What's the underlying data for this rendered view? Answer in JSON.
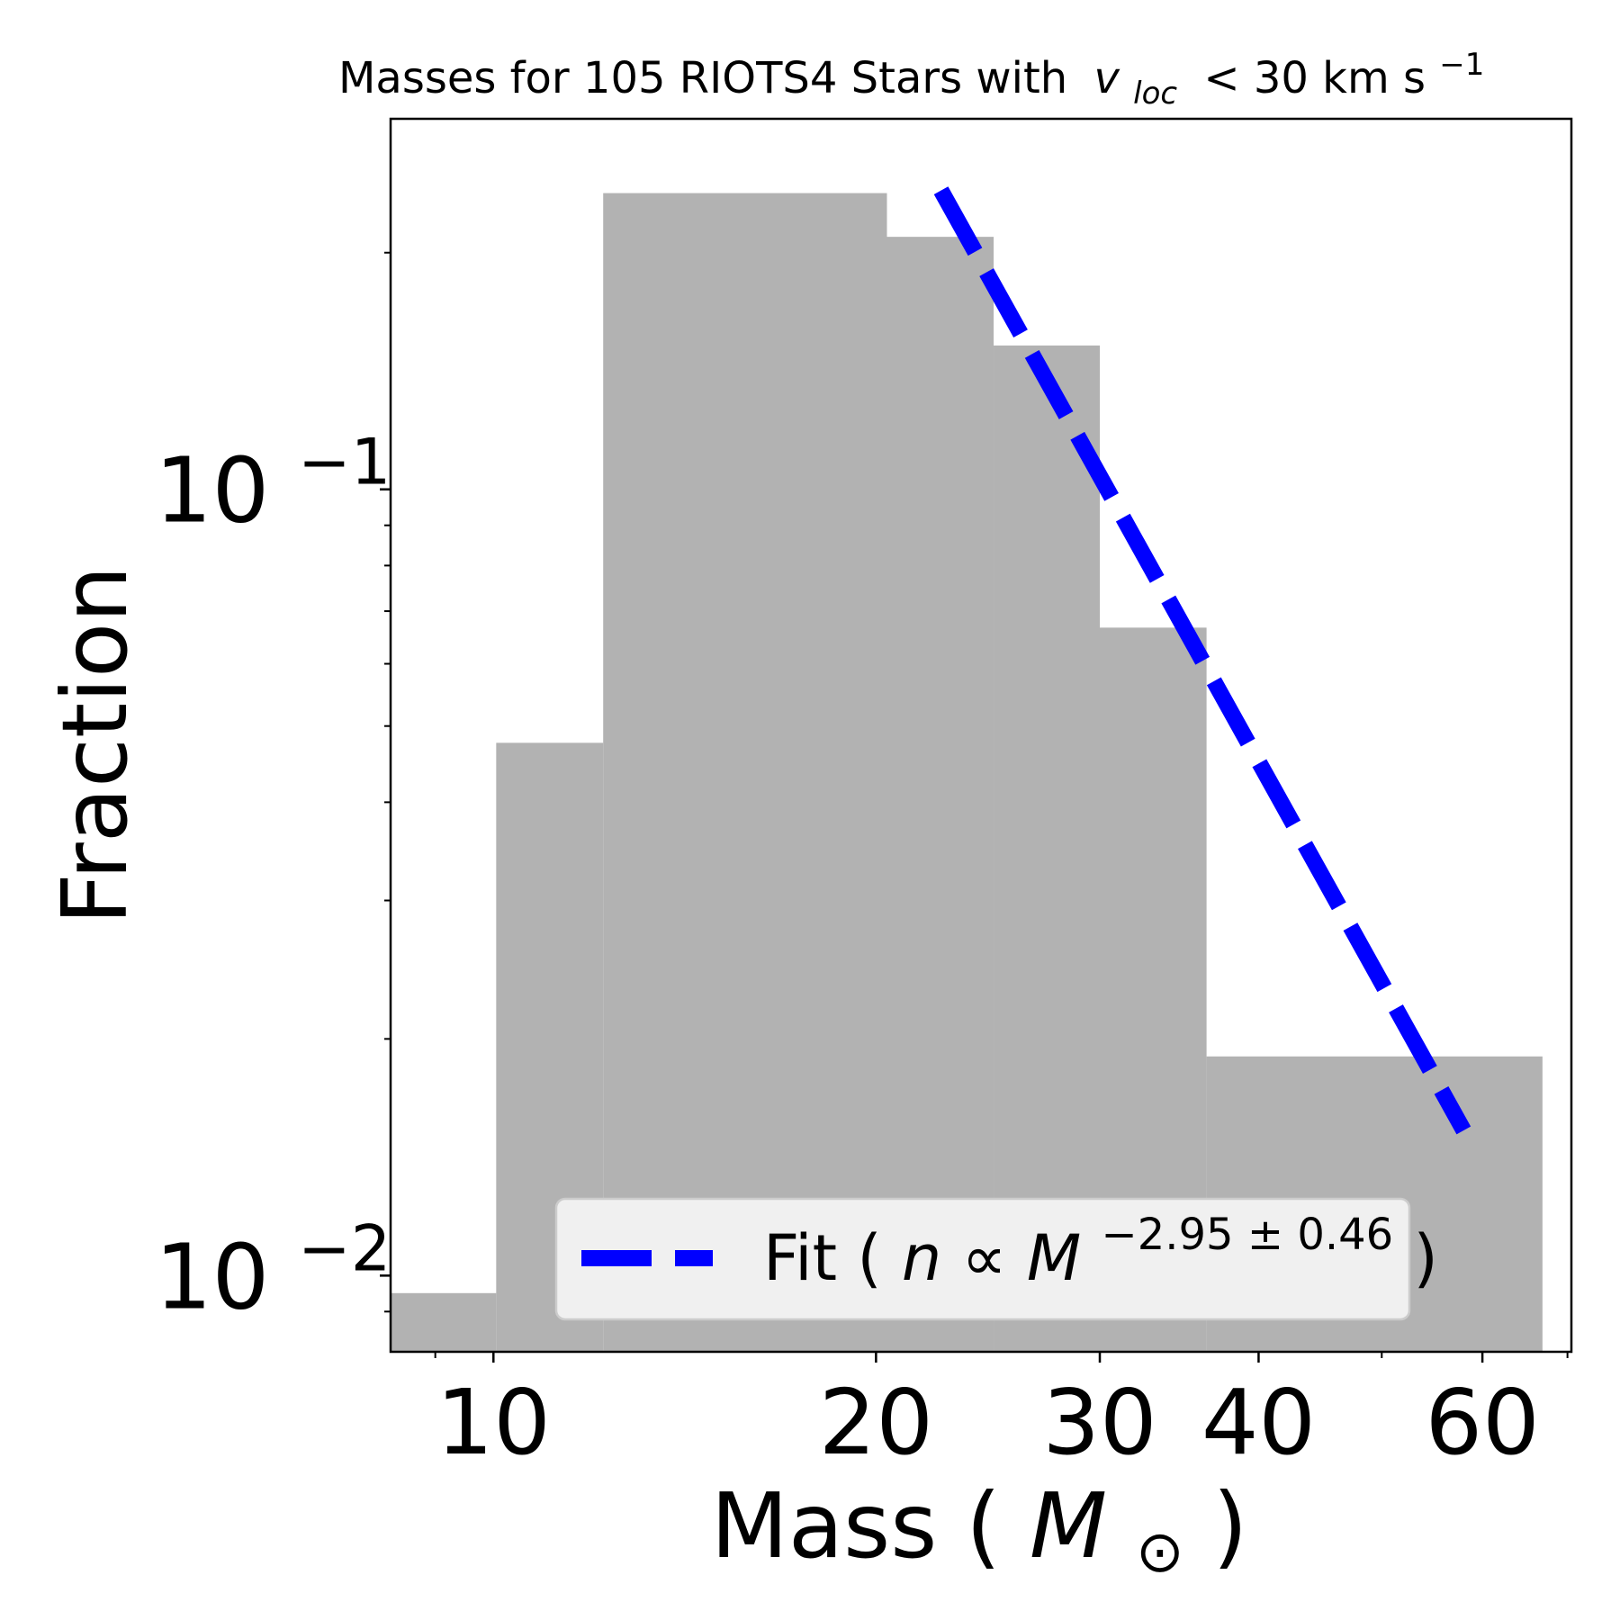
{
  "chart_data": {
    "type": "bar",
    "title": "Masses for 105 RIOTS4 Stars with",
    "title_symbol_v": "v",
    "title_symbol_sub": "loc",
    "title_suffix": "< 30 km s",
    "title_suffix_exp": "−1",
    "xlabel_prefix": "Mass (",
    "xlabel_symbol": "M",
    "xlabel_sub": "⊙",
    "xlabel_suffix": ")",
    "ylabel": "Fraction",
    "x_scale": "log",
    "y_scale": "log",
    "xlim": [
      8.3,
      70.5
    ],
    "ylim": [
      0.008,
      0.296
    ],
    "x_ticks": [
      {
        "value": 10,
        "label": "10"
      },
      {
        "value": 20,
        "label": "20"
      },
      {
        "value": 30,
        "label": "30"
      },
      {
        "value": 40,
        "label": "40"
      },
      {
        "value": 60,
        "label": "60"
      }
    ],
    "x_minor_ticks": [
      9,
      50,
      70
    ],
    "y_ticks": [
      {
        "value": 0.1,
        "base": "10",
        "exp": "−1"
      },
      {
        "value": 0.01,
        "base": "10",
        "exp": "−2"
      }
    ],
    "y_minor_ticks": [
      0.009,
      0.02,
      0.03,
      0.04,
      0.05,
      0.06,
      0.07,
      0.08,
      0.09,
      0.2
    ],
    "bins": [
      {
        "x0": 8.3,
        "x1": 10.05,
        "value": 0.0095
      },
      {
        "x0": 10.05,
        "x1": 12.2,
        "value": 0.0476
      },
      {
        "x0": 12.2,
        "x1": 20.4,
        "value": 0.2381
      },
      {
        "x0": 20.4,
        "x1": 24.75,
        "value": 0.2095
      },
      {
        "x0": 24.75,
        "x1": 30.0,
        "value": 0.1524
      },
      {
        "x0": 30.0,
        "x1": 36.4,
        "value": 0.0667
      },
      {
        "x0": 36.4,
        "x1": 66.9,
        "value": 0.019
      }
    ],
    "bar_color": "#b2b2b2",
    "series": [
      {
        "name": "Fit",
        "kind": "line",
        "style": "dashed",
        "color": "#0000ff",
        "x": [
          22.5,
          58.0
        ],
        "y": [
          0.24,
          0.0153
        ]
      }
    ],
    "legend": {
      "placement": "lower-center",
      "label_prefix": "Fit (",
      "label_n": "n",
      "label_prop": " ∝ ",
      "label_m": "M",
      "label_exp": "−2.95 ± 0.46",
      "label_suffix": ")",
      "background": "#f0f0f0"
    }
  }
}
